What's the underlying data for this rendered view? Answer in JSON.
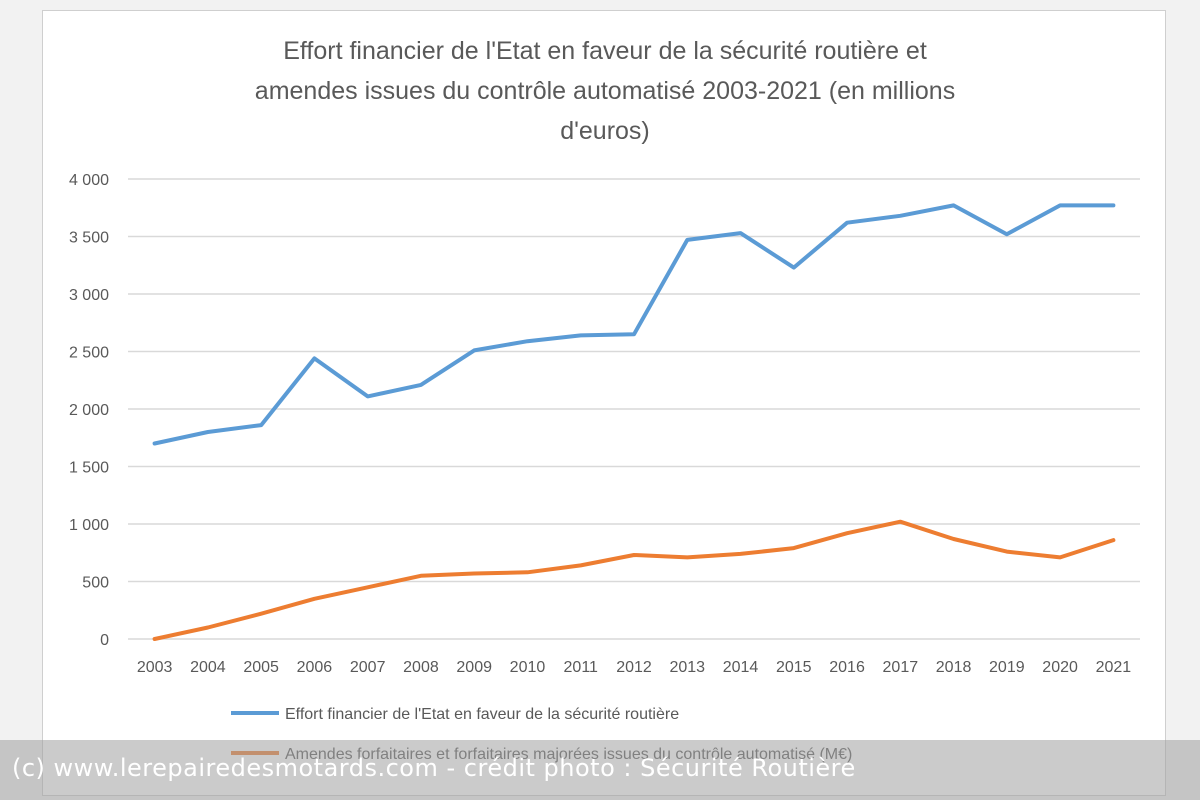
{
  "chart_data": {
    "type": "line",
    "title_lines": [
      "Effort financier de l'Etat en faveur de la sécurité routière et",
      "amendes issues du contrôle automatisé 2003-2021 (en millions",
      "d'euros)"
    ],
    "categories": [
      "2003",
      "2004",
      "2005",
      "2006",
      "2007",
      "2008",
      "2009",
      "2010",
      "2011",
      "2012",
      "2013",
      "2014",
      "2015",
      "2016",
      "2017",
      "2018",
      "2019",
      "2020",
      "2021"
    ],
    "ylim": [
      0,
      4000
    ],
    "yticks": [
      0,
      500,
      1000,
      1500,
      2000,
      2500,
      3000,
      3500,
      4000
    ],
    "ytick_labels": [
      "0",
      "500",
      "1 000",
      "1 500",
      "2 000",
      "2 500",
      "3 000",
      "3 500",
      "4 000"
    ],
    "grid": true,
    "legend_position": "bottom",
    "series": [
      {
        "name": "Effort financier de l'Etat en faveur de la sécurité routière",
        "color": "#5b9bd5",
        "values": [
          1700,
          1800,
          1860,
          2440,
          2110,
          2210,
          2510,
          2590,
          2640,
          2650,
          3470,
          3530,
          3230,
          3620,
          3680,
          3770,
          3520,
          3770,
          3770
        ]
      },
      {
        "name": "Amendes forfaitaires et forfaitaires majorées issues du contrôle automatisé (M€)",
        "color": "#ed7d31",
        "values": [
          0,
          100,
          220,
          350,
          450,
          550,
          570,
          580,
          640,
          730,
          710,
          740,
          790,
          920,
          1020,
          870,
          760,
          710,
          860
        ]
      }
    ]
  },
  "watermark": "(c) www.lerepairedesmotards.com - crédit photo : Sécurité Routière"
}
